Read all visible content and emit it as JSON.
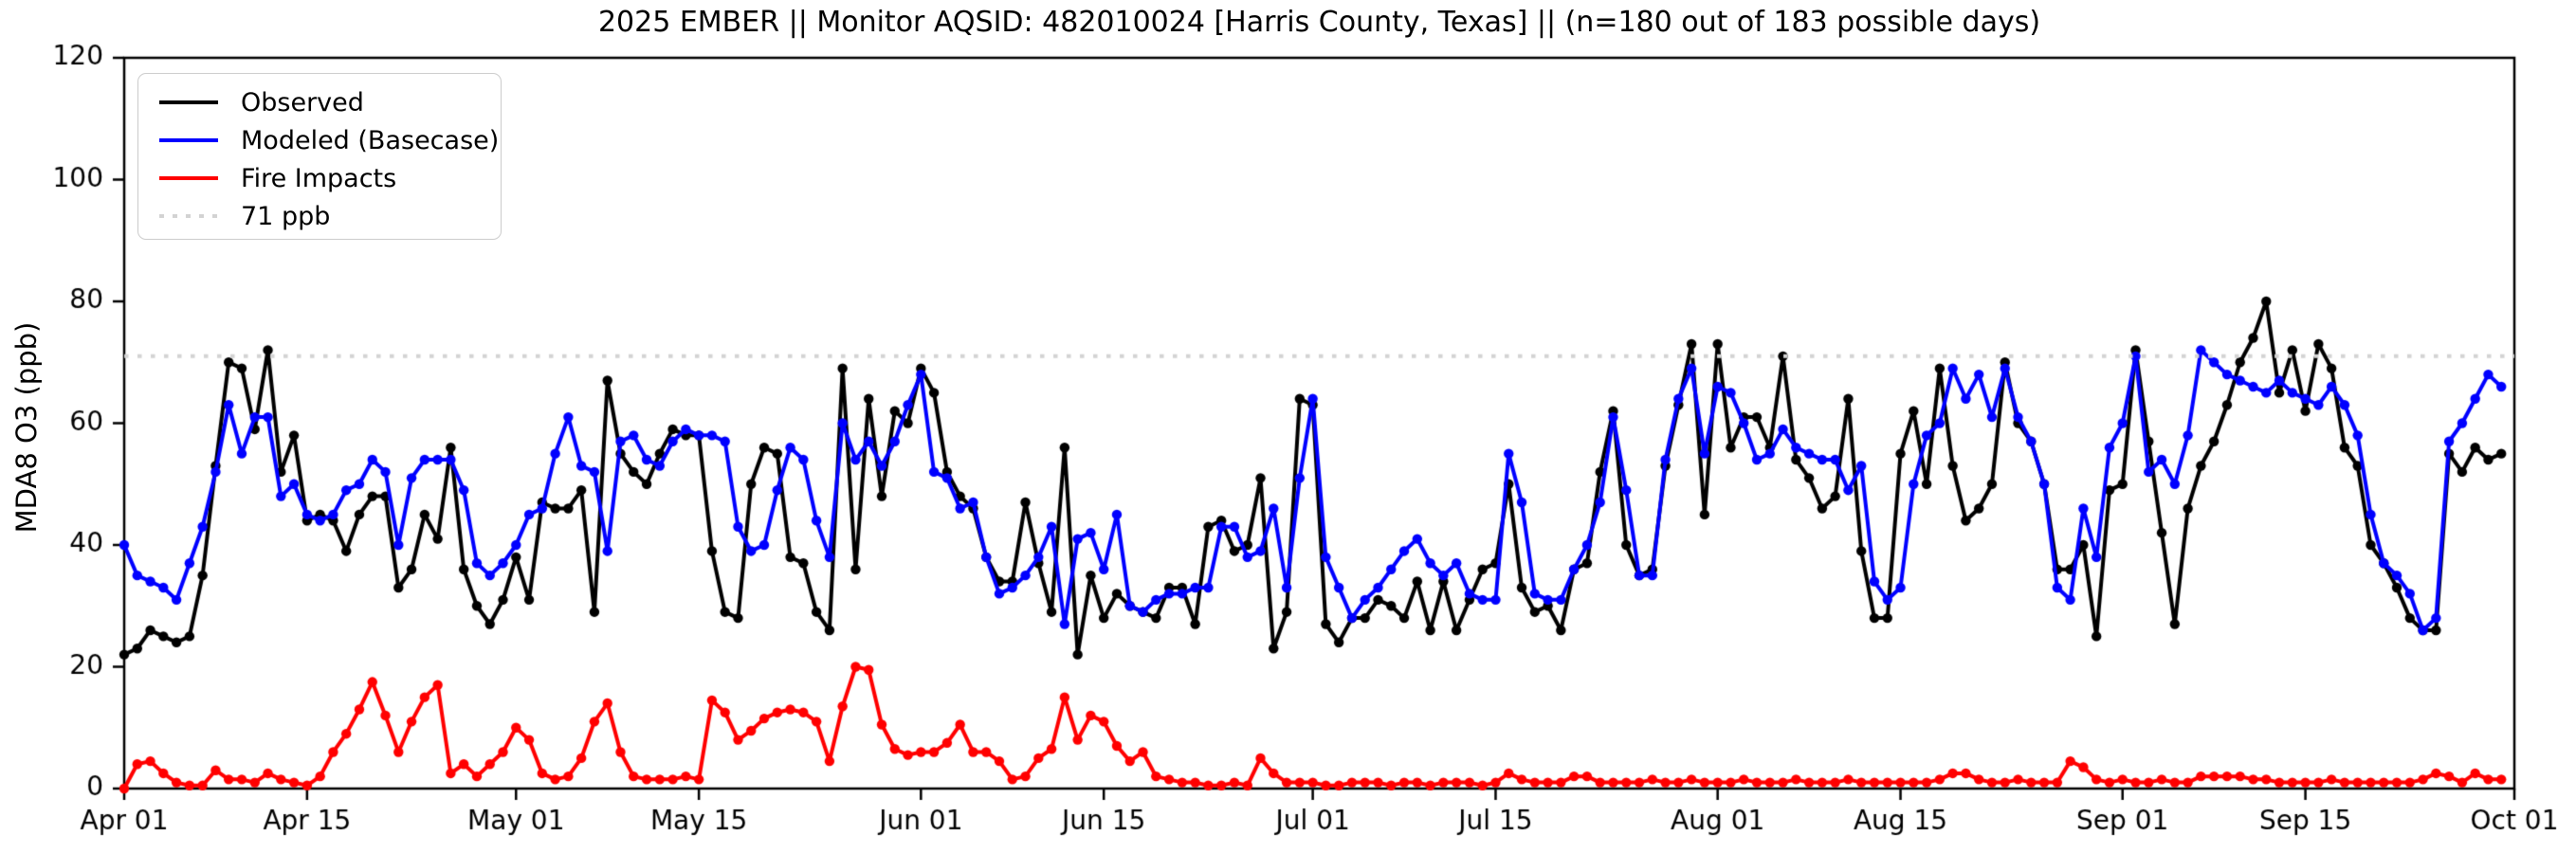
{
  "window": {
    "title": "2025 EMBER || Monitor AQSID: 482010024 [Harris County, Texas] || (n=180 out of 183 possible days)"
  },
  "colors": {
    "observed": "#000000",
    "modeled": "#0000ff",
    "fire": "#ff0000",
    "threshold": "#d3d3d3",
    "axis": "#000000"
  },
  "legend": {
    "items": [
      {
        "label": "Observed",
        "color": "#000000",
        "style": "solid"
      },
      {
        "label": "Modeled (Basecase)",
        "color": "#0000ff",
        "style": "solid"
      },
      {
        "label": "Fire Impacts",
        "color": "#ff0000",
        "style": "solid"
      },
      {
        "label": "71 ppb",
        "color": "#d3d3d3",
        "style": "dotted"
      }
    ]
  },
  "chart_data": {
    "type": "line",
    "title": "2025 EMBER || Monitor AQSID: 482010024 [Harris County, Texas] || (n=180 out of 183 possible days)",
    "xlabel": "",
    "ylabel": "MDA8 O3 (ppb)",
    "ylim": [
      0,
      120
    ],
    "y_ticks": [
      0,
      20,
      40,
      60,
      80,
      100,
      120
    ],
    "x_range_days": [
      0,
      183
    ],
    "x_ticks": [
      {
        "day": 0,
        "label": "Apr 01"
      },
      {
        "day": 14,
        "label": "Apr 15"
      },
      {
        "day": 30,
        "label": "May 01"
      },
      {
        "day": 44,
        "label": "May 15"
      },
      {
        "day": 61,
        "label": "Jun 01"
      },
      {
        "day": 75,
        "label": "Jun 15"
      },
      {
        "day": 91,
        "label": "Jul 01"
      },
      {
        "day": 105,
        "label": "Jul 15"
      },
      {
        "day": 122,
        "label": "Aug 01"
      },
      {
        "day": 136,
        "label": "Aug 15"
      },
      {
        "day": 153,
        "label": "Sep 01"
      },
      {
        "day": 167,
        "label": "Sep 15"
      },
      {
        "day": 183,
        "label": "Oct 01"
      }
    ],
    "grid": false,
    "legend_position": "upper-left",
    "threshold": {
      "value": 71,
      "label": "71 ppb",
      "color": "#d3d3d3",
      "style": "dotted"
    },
    "n_note": "n=180 out of 183 possible days",
    "series": [
      {
        "name": "Observed",
        "color": "#000000",
        "marker": "circle",
        "values": [
          22,
          23,
          26,
          25,
          24,
          25,
          35,
          53,
          70,
          69,
          59,
          72,
          52,
          58,
          44,
          45,
          44,
          39,
          45,
          48,
          48,
          33,
          36,
          45,
          41,
          56,
          36,
          30,
          27,
          31,
          38,
          31,
          47,
          46,
          46,
          49,
          29,
          67,
          55,
          52,
          50,
          55,
          59,
          58,
          58,
          39,
          29,
          28,
          50,
          56,
          55,
          38,
          37,
          29,
          26,
          69,
          36,
          64,
          48,
          62,
          60,
          69,
          65,
          52,
          48,
          46,
          38,
          34,
          34,
          47,
          37,
          29,
          56,
          22,
          35,
          28,
          32,
          30,
          29,
          28,
          33,
          33,
          27,
          43,
          44,
          39,
          40,
          51,
          23,
          29,
          64,
          63,
          27,
          24,
          28,
          28,
          31,
          30,
          28,
          34,
          26,
          34,
          26,
          31,
          36,
          37,
          50,
          33,
          29,
          30,
          26,
          36,
          37,
          52,
          62,
          40,
          35,
          36,
          53,
          63,
          73,
          45,
          73,
          56,
          61,
          61,
          56,
          71,
          54,
          51,
          46,
          48,
          64,
          39,
          28,
          28,
          55,
          62,
          50,
          69,
          53,
          44,
          46,
          50,
          70,
          60,
          57,
          50,
          36,
          36,
          40,
          25,
          49,
          50,
          72,
          57,
          42,
          27,
          46,
          53,
          57,
          63,
          70,
          74,
          80,
          65,
          72,
          62,
          73,
          69,
          56,
          53,
          40,
          37,
          33,
          28,
          26,
          26,
          55,
          52,
          56,
          54,
          55
        ]
      },
      {
        "name": "Modeled (Basecase)",
        "color": "#0000ff",
        "marker": "circle",
        "values": [
          40,
          35,
          34,
          33,
          31,
          37,
          43,
          52,
          63,
          55,
          61,
          61,
          48,
          50,
          45,
          44,
          45,
          49,
          50,
          54,
          52,
          40,
          51,
          54,
          54,
          54,
          49,
          37,
          35,
          37,
          40,
          45,
          46,
          55,
          61,
          53,
          52,
          39,
          57,
          58,
          54,
          53,
          57,
          59,
          58,
          58,
          57,
          43,
          39,
          40,
          49,
          56,
          54,
          44,
          38,
          60,
          54,
          57,
          53,
          57,
          63,
          68,
          52,
          51,
          46,
          47,
          38,
          32,
          33,
          35,
          38,
          43,
          27,
          41,
          42,
          36,
          45,
          30,
          29,
          31,
          32,
          32,
          33,
          33,
          43,
          43,
          38,
          39,
          46,
          33,
          51,
          64,
          38,
          33,
          28,
          31,
          33,
          36,
          39,
          41,
          37,
          35,
          37,
          32,
          31,
          31,
          55,
          47,
          32,
          31,
          31,
          36,
          40,
          47,
          61,
          49,
          35,
          35,
          54,
          64,
          69,
          55,
          66,
          65,
          60,
          54,
          55,
          59,
          56,
          55,
          54,
          54,
          49,
          53,
          34,
          31,
          33,
          50,
          58,
          60,
          69,
          64,
          68,
          61,
          69,
          61,
          57,
          50,
          33,
          31,
          46,
          38,
          56,
          60,
          71,
          52,
          54,
          50,
          58,
          72,
          70,
          68,
          67,
          66,
          65,
          67,
          65,
          64,
          63,
          66,
          63,
          58,
          45,
          37,
          35,
          32,
          26,
          28,
          57,
          60,
          64,
          68,
          66
        ]
      },
      {
        "name": "Fire Impacts",
        "color": "#ff0000",
        "marker": "circle",
        "values": [
          0,
          4,
          4.5,
          2.5,
          1,
          0.5,
          0.5,
          3,
          1.5,
          1.5,
          1,
          2.5,
          1.5,
          1,
          0.5,
          2,
          6,
          9,
          13,
          17.5,
          12,
          6,
          11,
          15,
          17,
          2.5,
          4,
          2,
          4,
          6,
          10,
          8,
          2.5,
          1.5,
          2,
          5,
          11,
          14,
          6,
          2,
          1.5,
          1.5,
          1.5,
          2,
          1.5,
          14.5,
          12.5,
          8,
          9.5,
          11.5,
          12.5,
          13,
          12.5,
          11,
          4.5,
          13.5,
          20,
          19.5,
          10.5,
          6.5,
          5.5,
          6,
          6,
          7.5,
          10.5,
          6,
          6,
          4.5,
          1.5,
          2,
          5,
          6.5,
          15,
          8,
          12,
          11,
          7,
          4.5,
          6,
          2,
          1.5,
          1,
          1,
          0.5,
          0.5,
          1,
          0.5,
          5,
          2.5,
          1,
          1,
          1,
          0.5,
          0.5,
          1,
          1,
          1,
          0.5,
          1,
          1,
          0.5,
          1,
          1,
          1,
          0.5,
          1,
          2.5,
          1.5,
          1,
          1,
          1,
          2,
          2,
          1,
          1,
          1,
          1,
          1.5,
          1,
          1,
          1.5,
          1,
          1,
          1,
          1.5,
          1,
          1,
          1,
          1.5,
          1,
          1,
          1,
          1.5,
          1,
          1,
          1,
          1,
          1,
          1,
          1.5,
          2.5,
          2.5,
          1.5,
          1,
          1,
          1.5,
          1,
          1,
          1,
          4.5,
          3.5,
          1.5,
          1,
          1.5,
          1,
          1,
          1.5,
          1,
          1,
          2,
          2,
          2,
          2,
          1.5,
          1.5,
          1,
          1,
          1,
          1,
          1.5,
          1,
          1,
          1,
          1,
          1,
          1,
          1.5,
          2.5,
          2,
          1,
          2.5,
          1.5,
          1.5
        ]
      }
    ]
  }
}
